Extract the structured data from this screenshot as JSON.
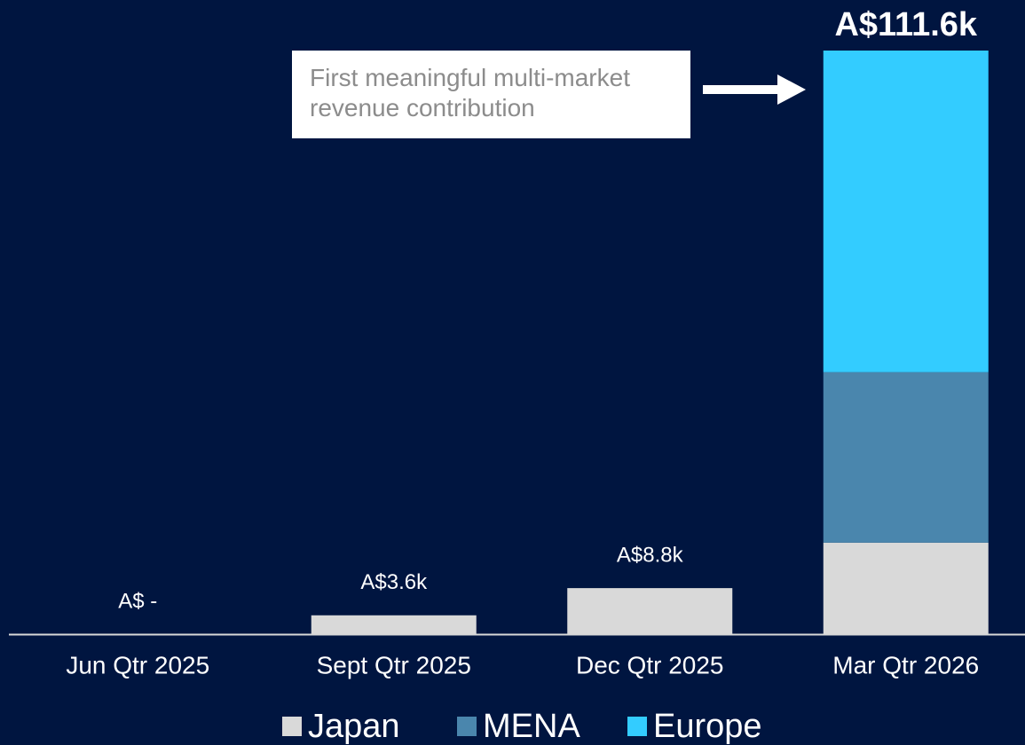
{
  "chart_data": {
    "type": "stacked_bar",
    "annotation": "First meaningful multi-market revenue contribution",
    "categories": [
      "Jun Qtr 2025",
      "Sept Qtr 2025",
      "Dec Qtr 2025",
      "Mar Qtr 2026"
    ],
    "series": [
      {
        "name": "Japan",
        "color": "#d9d9d9",
        "values": [
          0,
          3.6,
          8.8,
          17.5
        ]
      },
      {
        "name": "MENA",
        "color": "#4a86ad",
        "values": [
          0,
          0,
          0,
          32.6
        ]
      },
      {
        "name": "Europe",
        "color": "#33ccff",
        "values": [
          0,
          0,
          0,
          61.5
        ]
      }
    ],
    "totals": [
      0,
      3.6,
      8.8,
      111.6
    ],
    "total_labels": [
      "A$ -",
      "A$3.6k",
      "A$8.8k",
      "A$111.6k"
    ]
  }
}
